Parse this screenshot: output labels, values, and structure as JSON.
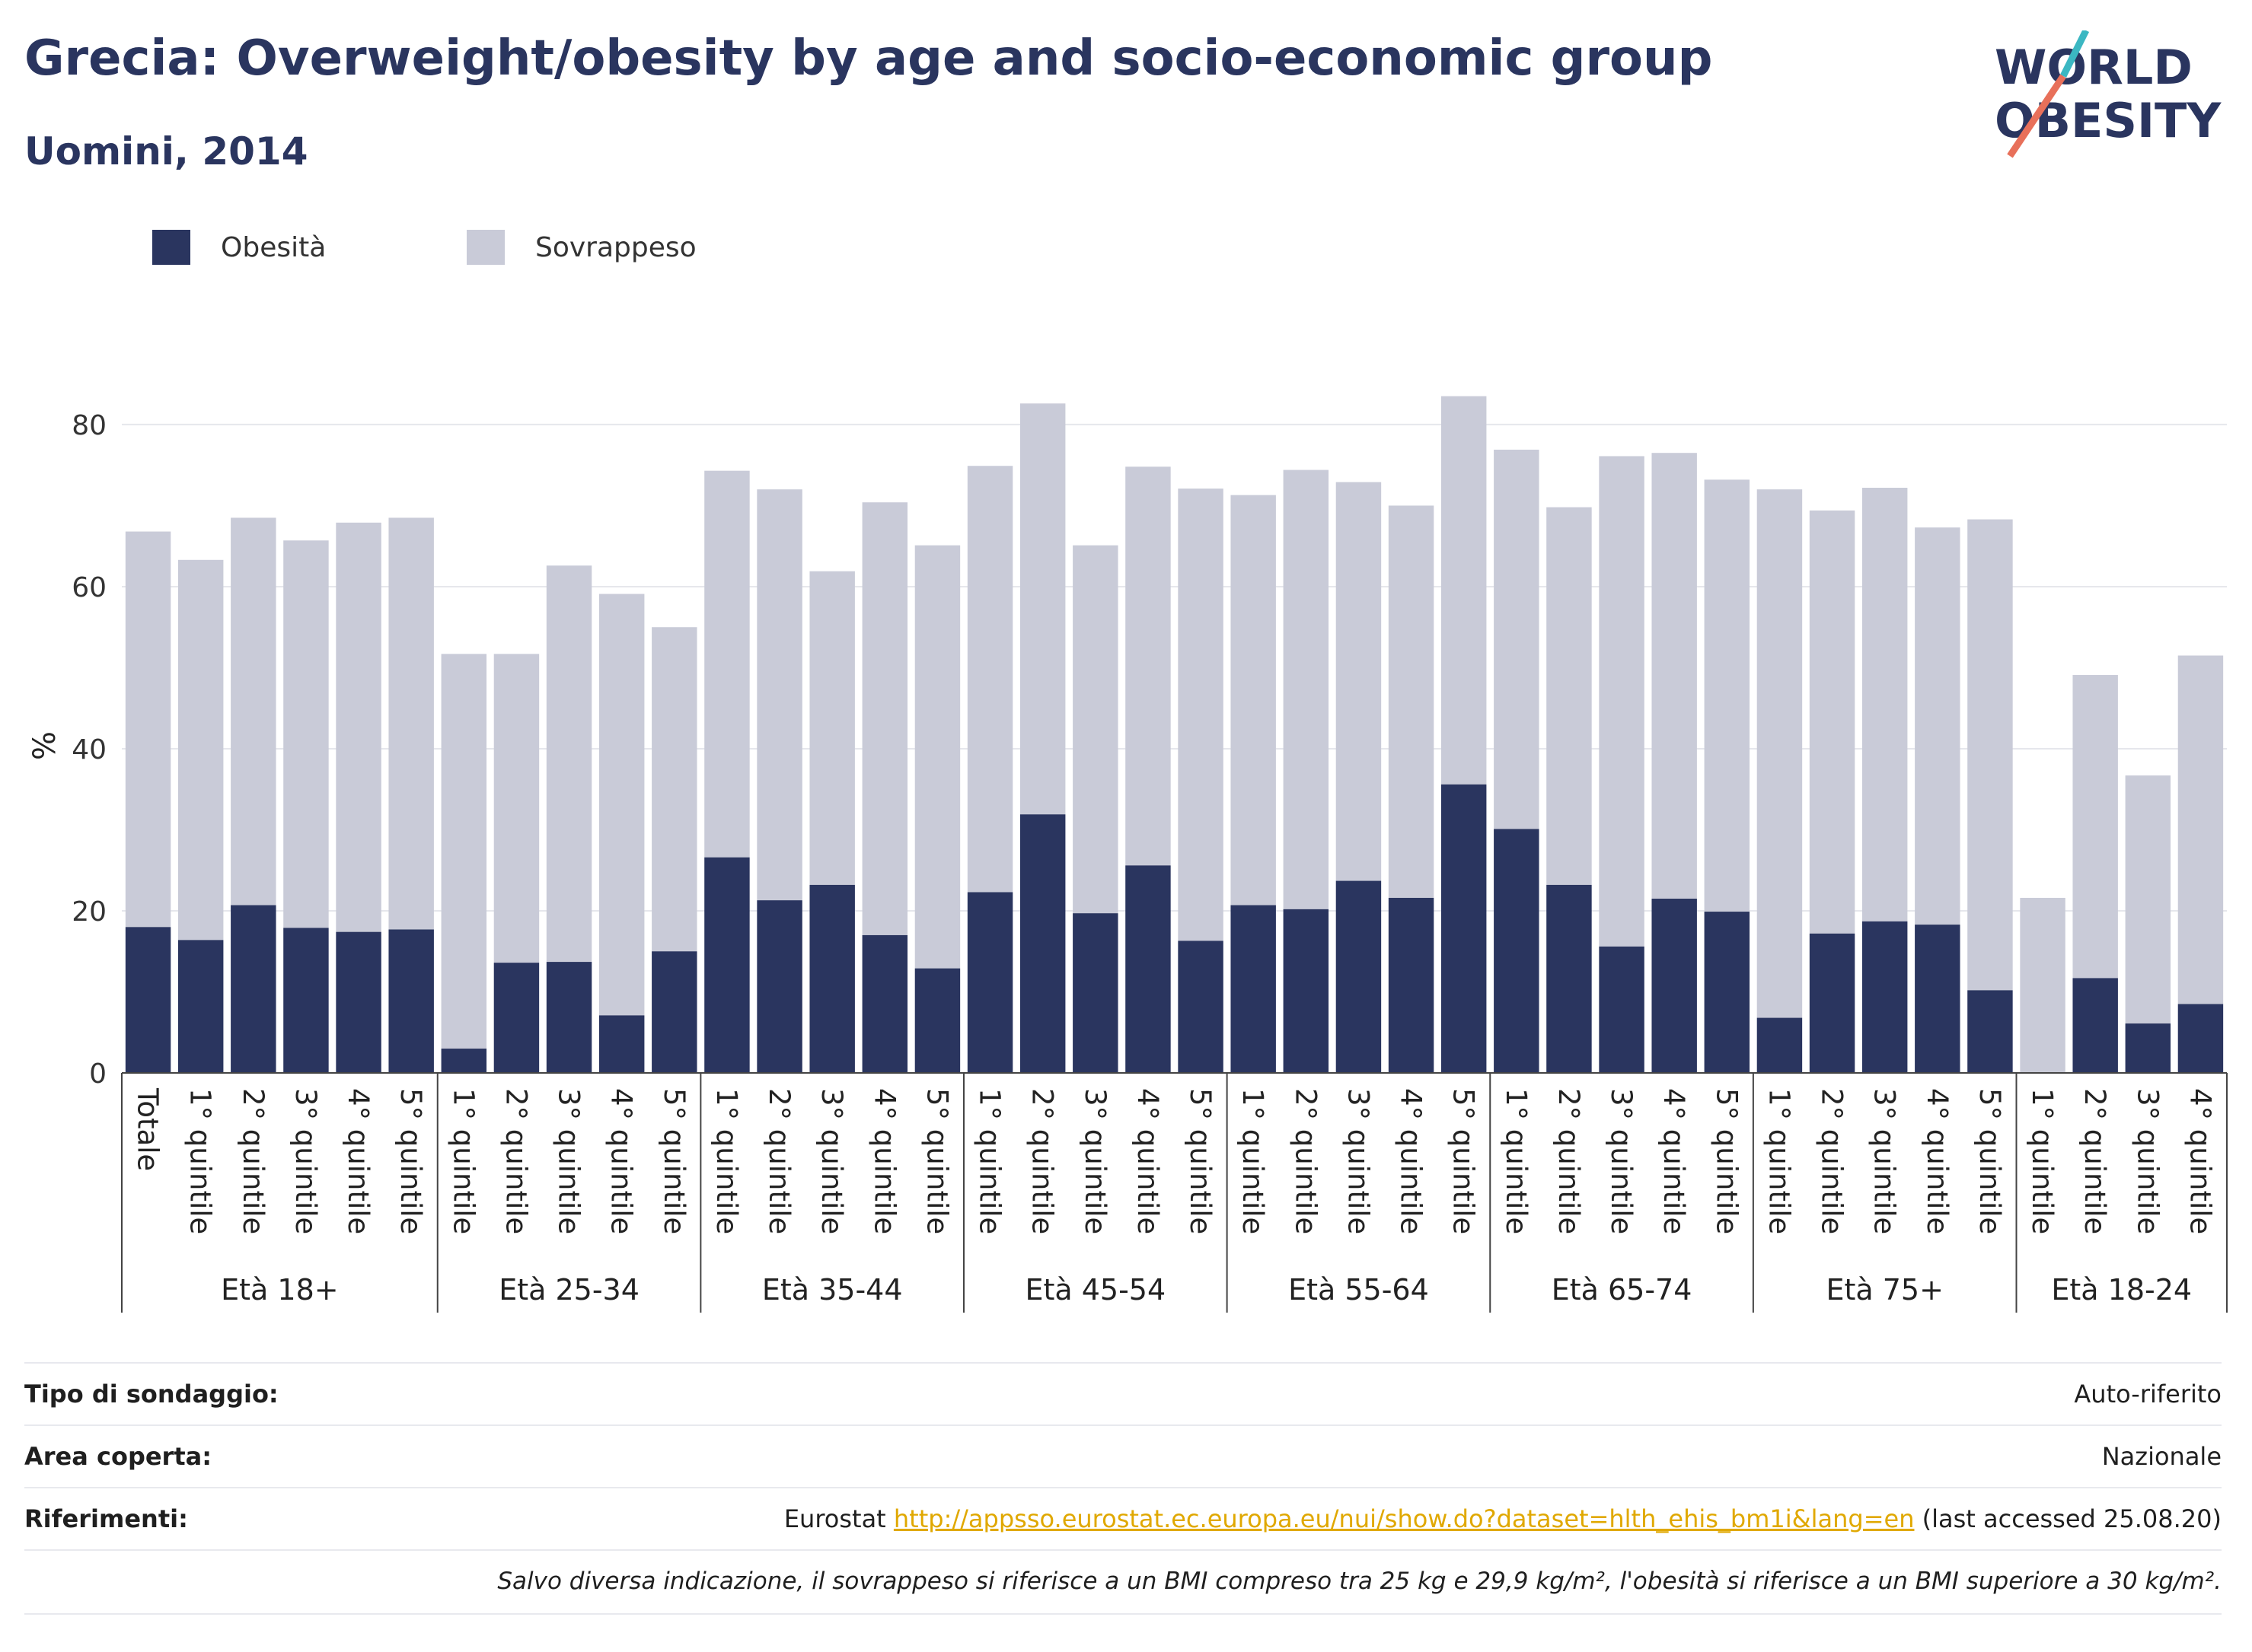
{
  "header": {
    "title": "Grecia: Overweight/obesity by age and socio-economic group",
    "subtitle": "Uomini, 2014"
  },
  "logo": {
    "line1": "WORLD",
    "line2": "OBESITY"
  },
  "legend": [
    {
      "label": "Obesità",
      "color": "#2a355f"
    },
    {
      "label": "Sovrappeso",
      "color": "#c9cbd8"
    }
  ],
  "chart_data": {
    "type": "bar",
    "stacked": true,
    "ylabel": "%",
    "xlabel": "",
    "ylim": [
      0,
      90
    ],
    "yticks": [
      0,
      20,
      40,
      60,
      80
    ],
    "grid": true,
    "legend_position": "top-left",
    "groups": [
      {
        "label": "Età 18+",
        "categories": [
          "Totale",
          "1° quintile",
          "2° quintile",
          "3° quintile",
          "4° quintile",
          "5° quintile"
        ],
        "obesity": [
          18.0,
          16.4,
          20.7,
          17.9,
          17.4,
          17.7
        ],
        "total": [
          66.8,
          63.3,
          68.5,
          65.7,
          67.9,
          68.5
        ]
      },
      {
        "label": "Età 25-34",
        "categories": [
          "1° quintile",
          "2° quintile",
          "3° quintile",
          "4° quintile",
          "5° quintile"
        ],
        "obesity": [
          3.0,
          13.6,
          13.7,
          7.1,
          15.0
        ],
        "total": [
          51.7,
          51.7,
          62.6,
          59.1,
          55.0
        ]
      },
      {
        "label": "Età 35-44",
        "categories": [
          "1° quintile",
          "2° quintile",
          "3° quintile",
          "4° quintile",
          "5° quintile"
        ],
        "obesity": [
          26.6,
          21.3,
          23.2,
          17.0,
          12.9
        ],
        "total": [
          74.3,
          72.0,
          61.9,
          70.4,
          65.1
        ]
      },
      {
        "label": "Età 45-54",
        "categories": [
          "1° quintile",
          "2° quintile",
          "3° quintile",
          "4° quintile",
          "5° quintile"
        ],
        "obesity": [
          22.3,
          31.9,
          19.7,
          25.6,
          16.3
        ],
        "total": [
          74.9,
          82.6,
          65.1,
          74.8,
          72.1
        ]
      },
      {
        "label": "Età 55-64",
        "categories": [
          "1° quintile",
          "2° quintile",
          "3° quintile",
          "4° quintile",
          "5° quintile"
        ],
        "obesity": [
          20.7,
          20.2,
          23.7,
          21.6,
          35.6
        ],
        "total": [
          71.3,
          74.4,
          72.9,
          70.0,
          83.5
        ]
      },
      {
        "label": "Età 65-74",
        "categories": [
          "1° quintile",
          "2° quintile",
          "3° quintile",
          "4° quintile",
          "5° quintile"
        ],
        "obesity": [
          30.1,
          23.2,
          15.6,
          21.5,
          19.9
        ],
        "total": [
          76.9,
          69.8,
          76.1,
          76.5,
          73.2
        ]
      },
      {
        "label": "Età 75+",
        "categories": [
          "1° quintile",
          "2° quintile",
          "3° quintile",
          "4° quintile",
          "5° quintile"
        ],
        "obesity": [
          6.8,
          17.2,
          18.7,
          18.3,
          10.2
        ],
        "total": [
          72.0,
          69.4,
          72.2,
          67.3,
          68.3
        ]
      },
      {
        "label": "Età 18-24",
        "categories": [
          "1° quintile",
          "2° quintile",
          "3° quintile",
          "4° quintile"
        ],
        "obesity": [
          0.0,
          11.7,
          6.1,
          8.5
        ],
        "total": [
          21.6,
          49.1,
          36.7,
          51.5
        ]
      }
    ]
  },
  "info": {
    "survey_label": "Tipo di sondaggio:",
    "survey_value": "Auto-riferito",
    "area_label": "Area coperta:",
    "area_value": "Nazionale",
    "refs_label": "Riferimenti:",
    "refs_prefix": "Eurostat",
    "refs_link": "http://appsso.eurostat.ec.europa.eu/nui/show.do?dataset=hlth_ehis_bm1i&lang=en",
    "refs_suffix": "(last accessed 25.08.20)",
    "note": "Salvo diversa indicazione, il sovrappeso si riferisce a un BMI compreso tra 25 kg e 29,9 kg/m², l'obesità si riferisce a un BMI superiore a 30 kg/m²."
  }
}
